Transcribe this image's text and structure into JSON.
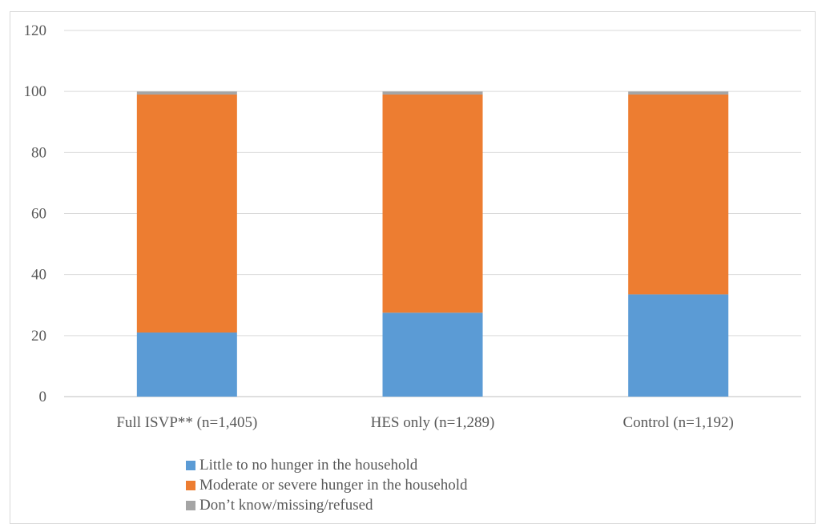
{
  "chart_data": {
    "type": "bar",
    "stacked": true,
    "title": "",
    "xlabel": "",
    "ylabel": "",
    "ylim": [
      0,
      120
    ],
    "yticks": [
      0,
      20,
      40,
      60,
      80,
      100,
      120
    ],
    "grid": true,
    "legend_position": "bottom",
    "categories": [
      "Full ISVP** (n=1,405)",
      "HES only (n=1,289)",
      "Control (n=1,192)"
    ],
    "series": [
      {
        "name": "Little to no hunger in the household",
        "color": "#5b9bd5",
        "values": [
          21,
          27.5,
          33.5
        ]
      },
      {
        "name": "Moderate or severe hunger in the household",
        "color": "#ed7d31",
        "values": [
          78,
          71.5,
          65.5
        ]
      },
      {
        "name": "Don’t know/missing/refused",
        "color": "#a5a5a5",
        "values": [
          1,
          1,
          1
        ]
      }
    ]
  }
}
